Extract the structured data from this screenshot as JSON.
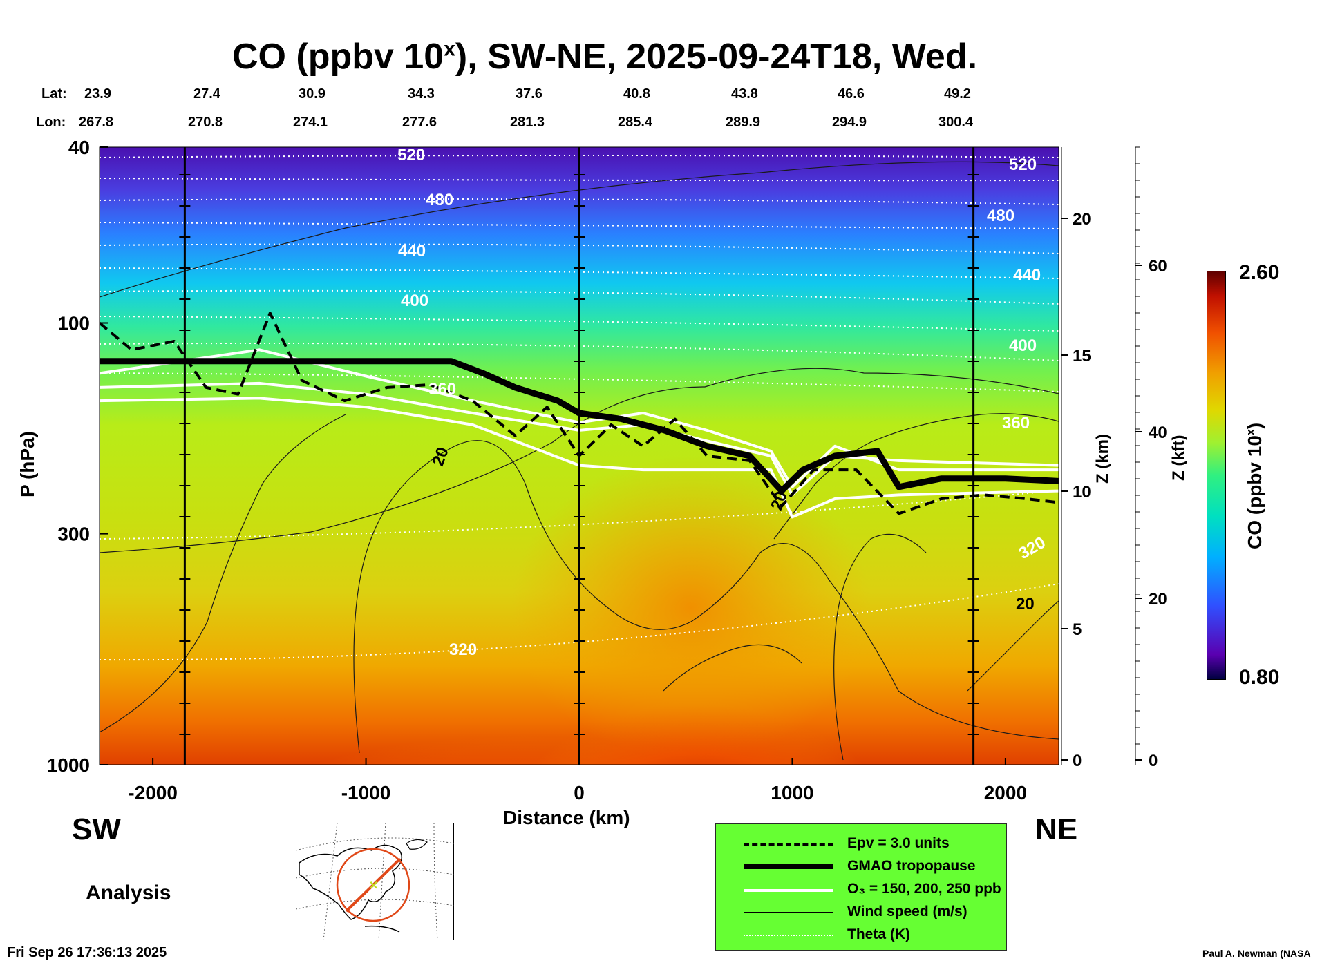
{
  "title": {
    "main": "CO (ppbv 10",
    "sup": "x",
    "rest": "), SW-NE, 2025-09-24T18, Wed."
  },
  "lat_label": "Lat:",
  "lon_label": "Lon:",
  "lat_values": [
    "23.9",
    "27.4",
    "30.9",
    "34.3",
    "37.6",
    "40.8",
    "43.8",
    "46.6",
    "49.2"
  ],
  "lon_values": [
    "267.8",
    "270.8",
    "274.1",
    "277.6",
    "281.3",
    "285.4",
    "289.9",
    "294.9",
    "300.4"
  ],
  "direction_left": "SW",
  "direction_right": "NE",
  "analysis_label": "Analysis",
  "timestamp": "Fri Sep 26 17:36:13 2025",
  "credit": "Paul A. Newman (NASA",
  "colorbar": {
    "label_main": "CO (ppbv 10",
    "label_sup": "x",
    "label_end": ")",
    "max": "2.60",
    "min": "0.80",
    "colors": [
      "#000040",
      "#5a00b0",
      "#3050ff",
      "#00b0ff",
      "#00e0c0",
      "#30f080",
      "#a0f030",
      "#e0d800",
      "#f0a000",
      "#f05000",
      "#c01000",
      "#600000"
    ]
  },
  "legend": [
    {
      "label": "Epv = 3.0 units",
      "style": "dashed",
      "color": "#000000"
    },
    {
      "label": "GMAO tropopause",
      "style": "thick",
      "color": "#000000"
    },
    {
      "label": "O₃ = 150, 200, 250 ppb",
      "style": "white",
      "color": "#ffffff"
    },
    {
      "label": "Wind speed (m/s)",
      "style": "thin",
      "color": "#000000"
    },
    {
      "label": "Theta (K)",
      "style": "dotted",
      "color": "#ffffff"
    }
  ],
  "chart_data": {
    "type": "heatmap",
    "title": "CO (ppbv 10^x), SW-NE, 2025-09-24T18, Wed.",
    "xlabel": "Distance (km)",
    "ylabel": "P (hPa)",
    "y2label": "Z (km)",
    "y3label": "Z (kft)",
    "xlim": [
      -2250,
      2250
    ],
    "ylim": [
      1000,
      40
    ],
    "y_scale": "log",
    "x_ticks": [
      -2000,
      -1000,
      0,
      1000,
      2000
    ],
    "x_tick_labels": [
      "-2000",
      "-1000",
      "0",
      "1000",
      "2000"
    ],
    "y_ticks": [
      40,
      100,
      300,
      1000
    ],
    "y_tick_labels": [
      "40",
      "100",
      "300",
      "1000"
    ],
    "z_km_ticks": [
      0,
      5,
      10,
      15,
      20
    ],
    "z_km_labels": [
      "0",
      "5",
      "10",
      "15",
      "20"
    ],
    "z_kft_ticks": [
      0,
      20,
      40,
      60
    ],
    "z_kft_labels": [
      "0",
      "20",
      "40",
      "60"
    ],
    "colorbar_range": [
      0.8,
      2.6
    ],
    "theta_contour_labels": [
      "520",
      "520",
      "480",
      "480",
      "440",
      "440",
      "400",
      "400",
      "360",
      "360",
      "320",
      "320"
    ],
    "wind_contour_labels": [
      "20",
      "20",
      "20"
    ],
    "tropopause": {
      "x": [
        -2250,
        -1800,
        -1400,
        -1000,
        -600,
        -450,
        -300,
        -100,
        0,
        200,
        400,
        600,
        800,
        950,
        1050,
        1200,
        1400,
        1500,
        1700,
        2000,
        2250
      ],
      "p": [
        122,
        122,
        122,
        122,
        122,
        130,
        140,
        150,
        160,
        165,
        175,
        190,
        200,
        240,
        215,
        200,
        195,
        235,
        225,
        225,
        228
      ]
    },
    "epv": {
      "x": [
        -2250,
        -2100,
        -1900,
        -1750,
        -1600,
        -1450,
        -1300,
        -1100,
        -900,
        -700,
        -500,
        -300,
        -150,
        0,
        150,
        300,
        450,
        600,
        800,
        950,
        1100,
        1300,
        1500,
        1700,
        1900,
        2100,
        2250
      ],
      "p": [
        100,
        115,
        110,
        140,
        145,
        95,
        135,
        150,
        140,
        138,
        150,
        180,
        155,
        200,
        170,
        190,
        165,
        200,
        205,
        260,
        215,
        215,
        270,
        250,
        245,
        250,
        255
      ]
    },
    "o3_150": {
      "x": [
        -2250,
        -1500,
        -1000,
        -500,
        0,
        300,
        600,
        900,
        1000,
        1200,
        1500,
        2250
      ],
      "p": [
        140,
        137,
        145,
        160,
        175,
        170,
        185,
        200,
        245,
        200,
        205,
        210
      ]
    },
    "o3_200": {
      "x": [
        -2250,
        -1500,
        -1000,
        -500,
        0,
        300,
        600,
        900,
        1000,
        1200,
        1500,
        2250
      ],
      "p": [
        130,
        115,
        132,
        150,
        168,
        160,
        175,
        195,
        235,
        190,
        215,
        215
      ]
    },
    "o3_250": {
      "x": [
        -2250,
        -1500,
        -1000,
        -500,
        0,
        300,
        600,
        900,
        1000,
        1200,
        1500,
        2250
      ],
      "p": [
        150,
        148,
        155,
        170,
        210,
        215,
        215,
        215,
        275,
        250,
        245,
        240
      ]
    }
  }
}
